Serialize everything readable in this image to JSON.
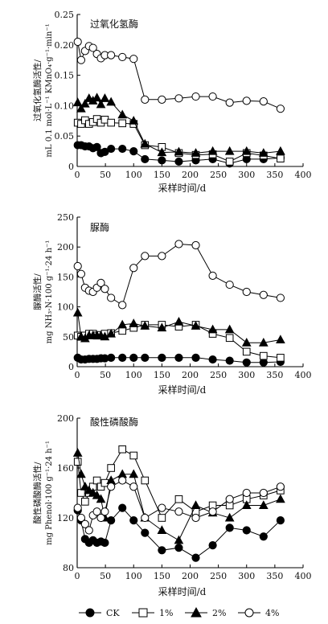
{
  "legend": [
    {
      "name": "CK",
      "marker": "filled-circle"
    },
    {
      "name": "1%",
      "marker": "open-square"
    },
    {
      "name": "2%",
      "marker": "filled-triangle"
    },
    {
      "name": "4%",
      "marker": "open-circle"
    }
  ],
  "chart_data": [
    {
      "type": "line",
      "title": "过氧化氢酶",
      "xlabel": "采样时间/d",
      "ylabel_lines": [
        "过氧化氢酶活性/",
        "mL 0.1 mol·L⁻¹ KMnO₄·g⁻¹·min⁻¹"
      ],
      "xlim": [
        0,
        400
      ],
      "ylim": [
        0,
        0.25
      ],
      "xticks": [
        0,
        50,
        100,
        150,
        200,
        250,
        300,
        350,
        400
      ],
      "yticks": [
        0,
        0.05,
        0.1,
        0.15,
        0.2,
        0.25
      ],
      "ytick_labels": [
        "0",
        "0.05",
        "0.10",
        "0.15",
        "0.20",
        "0.25"
      ],
      "x": [
        1,
        7,
        14,
        21,
        28,
        35,
        42,
        49,
        60,
        80,
        100,
        120,
        150,
        180,
        210,
        240,
        270,
        300,
        330,
        360
      ],
      "series": [
        {
          "name": "CK",
          "values": [
            0.035,
            0.035,
            0.033,
            0.033,
            0.03,
            0.032,
            0.022,
            0.024,
            0.029,
            0.029,
            0.025,
            0.012,
            0.01,
            0.008,
            0.01,
            0.012,
            0.005,
            0.012,
            0.012,
            0.014
          ]
        },
        {
          "name": "1%",
          "values": [
            0.072,
            0.07,
            0.076,
            0.07,
            0.073,
            0.078,
            0.072,
            0.077,
            0.072,
            0.071,
            0.07,
            0.035,
            0.032,
            0.022,
            0.019,
            0.02,
            0.008,
            0.022,
            0.018,
            0.013
          ]
        },
        {
          "name": "2%",
          "values": [
            0.105,
            0.095,
            0.103,
            0.112,
            0.108,
            0.113,
            0.102,
            0.112,
            0.106,
            0.085,
            0.075,
            0.037,
            0.023,
            0.024,
            0.022,
            0.025,
            0.025,
            0.025,
            0.022,
            0.025
          ]
        },
        {
          "name": "4%",
          "values": [
            0.205,
            0.175,
            0.19,
            0.198,
            0.195,
            0.185,
            0.178,
            0.183,
            0.183,
            0.18,
            0.177,
            0.11,
            0.11,
            0.112,
            0.115,
            0.115,
            0.105,
            0.108,
            0.107,
            0.095
          ]
        }
      ]
    },
    {
      "type": "line",
      "title": "脲酶",
      "xlabel": "采样时间/d",
      "ylabel_lines": [
        "脲酶活性/",
        "mg NH₃-N·100 g⁻¹·24 h⁻¹"
      ],
      "xlim": [
        0,
        400
      ],
      "ylim": [
        0,
        250
      ],
      "xticks": [
        0,
        50,
        100,
        150,
        200,
        250,
        300,
        350,
        400
      ],
      "yticks": [
        0,
        50,
        100,
        150,
        200,
        250
      ],
      "ytick_labels": [
        "0",
        "50",
        "100",
        "150",
        "200",
        "250"
      ],
      "x": [
        1,
        7,
        14,
        21,
        28,
        35,
        42,
        49,
        60,
        80,
        100,
        120,
        150,
        180,
        210,
        240,
        270,
        300,
        330,
        360
      ],
      "series": [
        {
          "name": "CK",
          "values": [
            15,
            12,
            12,
            13,
            13,
            13,
            14,
            14,
            15,
            15,
            15,
            15,
            15,
            15,
            15,
            12,
            10,
            7,
            7,
            8
          ]
        },
        {
          "name": "1%",
          "values": [
            52,
            50,
            52,
            55,
            55,
            52,
            53,
            55,
            56,
            60,
            65,
            70,
            70,
            67,
            70,
            55,
            48,
            25,
            18,
            15
          ]
        },
        {
          "name": "2%",
          "values": [
            90,
            50,
            47,
            52,
            52,
            52,
            52,
            50,
            55,
            70,
            72,
            68,
            65,
            75,
            68,
            62,
            62,
            40,
            40,
            45
          ]
        },
        {
          "name": "4%",
          "values": [
            168,
            155,
            132,
            127,
            125,
            132,
            140,
            130,
            115,
            103,
            165,
            185,
            185,
            205,
            203,
            152,
            137,
            125,
            120,
            115
          ]
        }
      ]
    },
    {
      "type": "line",
      "title": "酸性磷酸酶",
      "xlabel": "采样时间/d",
      "ylabel_lines": [
        "酸性磷酸酶活性/",
        "mg Phenol·100 g⁻¹·24 h⁻¹"
      ],
      "xlim": [
        0,
        400
      ],
      "ylim": [
        80,
        200
      ],
      "xticks": [
        0,
        50,
        100,
        150,
        200,
        250,
        300,
        350,
        400
      ],
      "yticks": [
        80,
        120,
        160,
        200
      ],
      "ytick_labels": [
        "80",
        "120",
        "160",
        "200"
      ],
      "x": [
        1,
        7,
        14,
        21,
        28,
        35,
        42,
        49,
        60,
        80,
        100,
        120,
        150,
        180,
        210,
        240,
        270,
        300,
        330,
        360
      ],
      "series": [
        {
          "name": "CK",
          "values": [
            126,
            118,
            103,
            100,
            102,
            100,
            101,
            100,
            118,
            128,
            118,
            108,
            94,
            96,
            88,
            98,
            112,
            110,
            105,
            118
          ]
        },
        {
          "name": "1%",
          "values": [
            165,
            140,
            133,
            140,
            145,
            150,
            145,
            148,
            160,
            175,
            170,
            150,
            120,
            135,
            125,
            130,
            130,
            135,
            138,
            142
          ]
        },
        {
          "name": "2%",
          "values": [
            172,
            155,
            145,
            142,
            140,
            138,
            135,
            120,
            150,
            155,
            155,
            120,
            110,
            102,
            130,
            124,
            120,
            130,
            130,
            135
          ]
        },
        {
          "name": "4%",
          "values": [
            128,
            120,
            115,
            110,
            122,
            125,
            120,
            125,
            145,
            150,
            145,
            120,
            128,
            125,
            120,
            125,
            135,
            140,
            140,
            145
          ]
        }
      ]
    }
  ]
}
